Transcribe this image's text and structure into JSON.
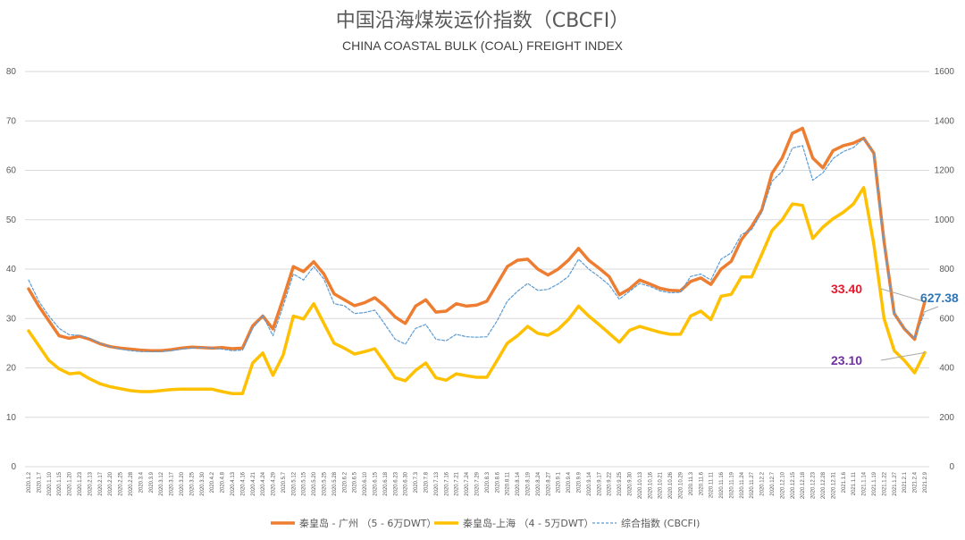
{
  "chart_data": {
    "type": "line",
    "title": "中国沿海煤炭运价指数（CBCFI）",
    "subtitle": "CHINA COASTAL BULK (COAL) FREIGHT INDEX",
    "grid": true,
    "legend_position": "bottom",
    "y_left": {
      "range": [
        0,
        80
      ],
      "ticks": [
        "0",
        "10",
        "20",
        "30",
        "40",
        "50",
        "60",
        "70",
        "80"
      ]
    },
    "y_right": {
      "range": [
        0,
        1600
      ],
      "ticks": [
        "0",
        "200",
        "400",
        "600",
        "800",
        "1000",
        "1200",
        "1400",
        "1600"
      ]
    },
    "categories": [
      "2020.1.2",
      "2020.1.7",
      "2020.1.10",
      "2020.1.15",
      "2020.1.20",
      "2020.1.23",
      "2020.2.13",
      "2020.2.17",
      "2020.2.20",
      "2020.2.25",
      "2020.2.28",
      "2020.3.4",
      "2020.3.9",
      "2020.3.12",
      "2020.3.17",
      "2020.3.20",
      "2020.3.25",
      "2020.3.30",
      "2020.4.2",
      "2020.4.8",
      "2020.4.13",
      "2020.4.16",
      "2020.4.21",
      "2020.4.24",
      "2020.4.29",
      "2020.5.7",
      "2020.5.12",
      "2020.5.15",
      "2020.5.20",
      "2020.5.25",
      "2020.5.28",
      "2020.6.2",
      "2020.6.5",
      "2020.6.10",
      "2020.6.15",
      "2020.6.18",
      "2020.6.23",
      "2020.6.30",
      "2020.7.3",
      "2020.7.8",
      "2020.7.13",
      "2020.7.16",
      "2020.7.21",
      "2020.7.24",
      "2020.7.29",
      "2020.8.3",
      "2020.8.6",
      "2020.8.11",
      "2020.8.14",
      "2020.8.19",
      "2020.8.24",
      "2020.8.27",
      "2020.9.1",
      "2020.9.4",
      "2020.9.9",
      "2020.9.14",
      "2020.9.17",
      "2020.9.22",
      "2020.9.25",
      "2020.9.30",
      "2020.10.13",
      "2020.10.16",
      "2020.10.21",
      "2020.10.26",
      "2020.10.29",
      "2020.11.3",
      "2020.11.6",
      "2020.11.11",
      "2020.11.16",
      "2020.11.19",
      "2020.11.24",
      "2020.11.27",
      "2020.12.2",
      "2020.12.7",
      "2020.12.10",
      "2020.12.15",
      "2020.12.18",
      "2020.12.23",
      "2020.12.28",
      "2020.12.31",
      "2021.1.6",
      "2021.1.11",
      "2021.1.14",
      "2021.1.19",
      "2021.1.22",
      "2021.1.27",
      "2021.2.1",
      "2021.2.4",
      "2021.2.9"
    ],
    "series": [
      {
        "name": "秦皇岛 - 广州  （5 - 6万DWT）",
        "axis": "left",
        "color": "#ed7d31",
        "style": "solid",
        "values": [
          36.0,
          32.5,
          29.5,
          26.5,
          26.0,
          26.4,
          25.8,
          24.9,
          24.3,
          24.0,
          23.8,
          23.6,
          23.5,
          23.5,
          23.7,
          24.0,
          24.2,
          24.1,
          24.0,
          24.1,
          23.9,
          24.0,
          28.5,
          30.5,
          27.9,
          34.0,
          40.5,
          39.5,
          41.5,
          39.0,
          35.0,
          33.8,
          32.6,
          33.2,
          34.2,
          32.5,
          30.3,
          29.0,
          32.5,
          33.8,
          31.3,
          31.5,
          33.0,
          32.5,
          32.7,
          33.5,
          37.0,
          40.5,
          41.8,
          42.0,
          40.0,
          38.8,
          40.0,
          41.8,
          44.2,
          41.8,
          40.2,
          38.5,
          34.8,
          36.0,
          37.8,
          37.0,
          36.1,
          35.7,
          35.6,
          37.5,
          38.2,
          36.9,
          40.0,
          41.6,
          46.0,
          48.6,
          52.0,
          59.4,
          62.5,
          67.5,
          68.5,
          62.5,
          60.5,
          64.0,
          65.0,
          65.5,
          66.5,
          63.5,
          45.6,
          31.0,
          27.9,
          25.8,
          33.4
        ]
      },
      {
        "name": "秦皇岛-上海  （4 - 5万DWT）",
        "axis": "left",
        "color": "#ffc000",
        "style": "solid",
        "values": [
          27.5,
          24.5,
          21.5,
          19.8,
          18.8,
          19.0,
          17.8,
          16.8,
          16.2,
          15.8,
          15.4,
          15.2,
          15.2,
          15.4,
          15.6,
          15.7,
          15.7,
          15.7,
          15.7,
          15.2,
          14.8,
          14.8,
          21.0,
          23.0,
          18.5,
          22.6,
          30.5,
          29.9,
          33.0,
          29.0,
          25.0,
          24.0,
          22.8,
          23.3,
          23.9,
          21.0,
          18.0,
          17.4,
          19.5,
          21.0,
          18.0,
          17.5,
          18.8,
          18.4,
          18.1,
          18.1,
          21.5,
          25.0,
          26.5,
          28.4,
          27.0,
          26.6,
          27.8,
          29.8,
          32.5,
          30.5,
          28.8,
          27.0,
          25.2,
          27.6,
          28.4,
          27.8,
          27.2,
          26.8,
          26.8,
          30.5,
          31.5,
          29.8,
          34.5,
          34.9,
          38.4,
          38.4,
          43.0,
          47.8,
          50.0,
          53.2,
          52.9,
          46.2,
          48.5,
          50.2,
          51.5,
          53.2,
          56.5,
          45.0,
          30.0,
          23.5,
          21.5,
          19.0,
          23.1
        ]
      },
      {
        "name": "综合指数 (CBCFI)",
        "axis": "right",
        "color": "#5b9bd5",
        "style": "dashed",
        "values": [
          756,
          670,
          610,
          560,
          534,
          532,
          520,
          500,
          486,
          476,
          470,
          466,
          466,
          466,
          470,
          476,
          480,
          482,
          480,
          476,
          470,
          472,
          560,
          612,
          530,
          650,
          780,
          756,
          810,
          760,
          660,
          652,
          620,
          624,
          634,
          576,
          516,
          496,
          560,
          576,
          516,
          510,
          536,
          526,
          524,
          526,
          590,
          670,
          710,
          742,
          714,
          718,
          740,
          770,
          840,
          800,
          770,
          736,
          678,
          710,
          742,
          730,
          712,
          704,
          706,
          770,
          780,
          756,
          840,
          866,
          940,
          960,
          1030,
          1156,
          1196,
          1290,
          1300,
          1160,
          1190,
          1248,
          1276,
          1292,
          1330,
          1270,
          900,
          620,
          560,
          520,
          627.38
        ]
      }
    ],
    "annotations": [
      {
        "text": "33.40",
        "color": "#e8192c",
        "series": 0
      },
      {
        "text": "627.38",
        "color": "#2e75b6",
        "series": 2
      },
      {
        "text": "23.10",
        "color": "#7030a0",
        "series": 1
      }
    ]
  }
}
